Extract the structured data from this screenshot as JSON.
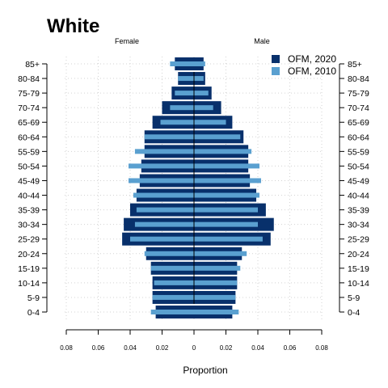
{
  "chart_data": {
    "type": "bar",
    "orientation": "horizontal",
    "title": "White",
    "panels": {
      "left": "Female",
      "right": "Male"
    },
    "xlabel": "Proportion",
    "xlim": [
      -0.08,
      0.08
    ],
    "xticks": [
      -0.08,
      -0.06,
      -0.04,
      -0.02,
      0,
      0.02,
      0.04,
      0.06,
      0.08
    ],
    "xtick_labels": [
      "0.08",
      "0.06",
      "0.04",
      "0.02",
      "0",
      "0.02",
      "0.04",
      "0.06",
      "0.08"
    ],
    "grid": true,
    "legend_position": "top-right",
    "categories": [
      "0-4",
      "5-9",
      "10-14",
      "15-19",
      "20-24",
      "25-29",
      "30-34",
      "35-39",
      "40-44",
      "45-49",
      "50-54",
      "55-59",
      "60-64",
      "65-69",
      "70-74",
      "75-79",
      "80-84",
      "85+"
    ],
    "series": [
      {
        "name": "OFM, 2020",
        "color": "#08306b",
        "female": [
          0.024,
          0.026,
          0.026,
          0.027,
          0.03,
          0.045,
          0.044,
          0.04,
          0.036,
          0.034,
          0.033,
          0.031,
          0.031,
          0.026,
          0.02,
          0.014,
          0.01,
          0.012
        ],
        "male": [
          0.024,
          0.026,
          0.027,
          0.027,
          0.03,
          0.048,
          0.05,
          0.045,
          0.039,
          0.035,
          0.034,
          0.034,
          0.031,
          0.024,
          0.017,
          0.011,
          0.007,
          0.006
        ]
      },
      {
        "name": "OFM, 2010",
        "color": "#5aa0d0",
        "female": [
          0.027,
          0.026,
          0.025,
          0.027,
          0.031,
          0.04,
          0.037,
          0.036,
          0.038,
          0.041,
          0.041,
          0.037,
          0.031,
          0.021,
          0.015,
          0.012,
          0.01,
          0.015
        ],
        "male": [
          0.028,
          0.026,
          0.027,
          0.029,
          0.033,
          0.043,
          0.04,
          0.04,
          0.041,
          0.042,
          0.041,
          0.036,
          0.029,
          0.02,
          0.012,
          0.009,
          0.006,
          0.007
        ]
      }
    ]
  }
}
